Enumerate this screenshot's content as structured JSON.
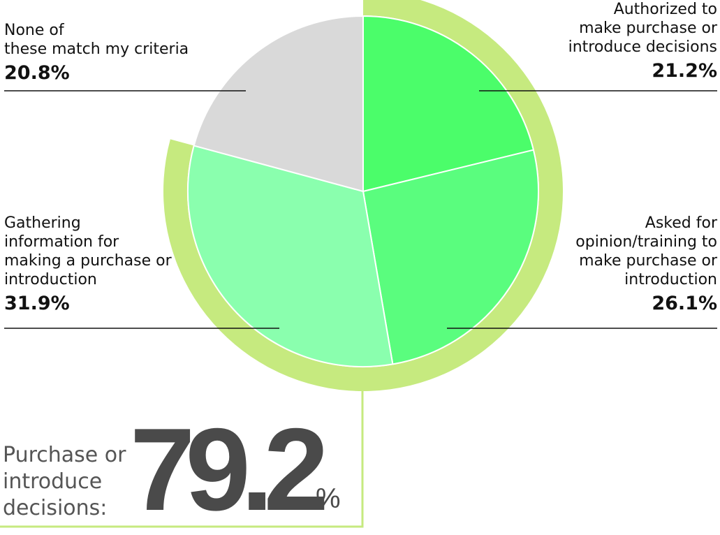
{
  "chart_data": {
    "type": "pie",
    "title": "",
    "slices": [
      {
        "label": "Authorized to make purchase or introduce decisions",
        "value": 21.2,
        "value_label": "21.2%",
        "color": "#4bfd6a"
      },
      {
        "label": "Asked for opinion/training to make purchase or introduction",
        "value": 26.1,
        "value_label": "26.1%",
        "color": "#5afd7e"
      },
      {
        "label": "Gathering information for making a purchase or introduction",
        "value": 31.9,
        "value_label": "31.9%",
        "color": "#8affae"
      },
      {
        "label": "None of these match my criteria",
        "value": 20.8,
        "value_label": "20.8%",
        "color": "#d9d9d9"
      }
    ],
    "highlight_ring_color": "#c6ea7f",
    "highlight_group_total": "79.2",
    "highlight_group_unit": "%",
    "highlight_group_label": [
      "Purchase or",
      "introduce",
      "decisions:"
    ]
  },
  "labels": {
    "authorized": [
      "Authorized to",
      "make purchase or",
      "introduce decisions"
    ],
    "asked": [
      "Asked for",
      "opinion/training to",
      "make purchase or",
      "introduction"
    ],
    "gathering": [
      "Gathering",
      "information for",
      "making a purchase or",
      "introduction"
    ],
    "none": [
      "None of",
      "these match my criteria"
    ]
  }
}
